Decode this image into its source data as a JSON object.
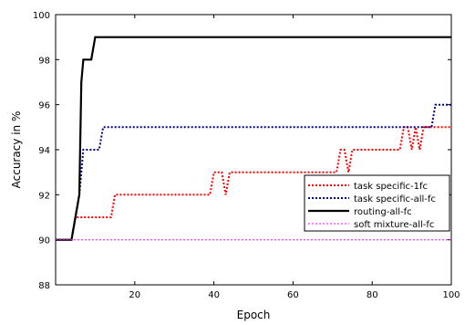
{
  "chart_data": {
    "type": "line",
    "title": "",
    "xlabel": "Epoch",
    "ylabel": "Accuracy in %",
    "xlim": [
      0,
      100
    ],
    "ylim": [
      88,
      100
    ],
    "xticks": [
      20,
      40,
      60,
      80,
      100
    ],
    "yticks": [
      88,
      90,
      92,
      94,
      96,
      98,
      100
    ],
    "grid": false,
    "legend_position": "lower-right",
    "series": [
      {
        "name": "task specific-1fc",
        "color": "#ff0000",
        "style": "dotted",
        "points": [
          [
            0,
            90
          ],
          [
            4,
            90
          ],
          [
            5,
            91
          ],
          [
            13,
            91
          ],
          [
            14,
            91
          ],
          [
            15,
            92
          ],
          [
            39,
            92
          ],
          [
            40,
            93
          ],
          [
            42,
            93
          ],
          [
            43,
            92
          ],
          [
            44,
            93
          ],
          [
            71,
            93
          ],
          [
            72,
            94
          ],
          [
            73,
            94
          ],
          [
            74,
            93
          ],
          [
            75,
            94
          ],
          [
            87,
            94
          ],
          [
            88,
            95
          ],
          [
            89,
            95
          ],
          [
            90,
            94
          ],
          [
            91,
            95
          ],
          [
            92,
            94
          ],
          [
            93,
            95
          ],
          [
            100,
            95
          ]
        ]
      },
      {
        "name": "task specific-all-fc",
        "color": "#000080",
        "style": "dotted",
        "points": [
          [
            0,
            90
          ],
          [
            4,
            90
          ],
          [
            5,
            91
          ],
          [
            6,
            92
          ],
          [
            7,
            94
          ],
          [
            11,
            94
          ],
          [
            12,
            95
          ],
          [
            95,
            95
          ],
          [
            96,
            96
          ],
          [
            100,
            96
          ]
        ]
      },
      {
        "name": "routing-all-fc",
        "color": "#000000",
        "style": "solid",
        "points": [
          [
            0,
            90
          ],
          [
            4,
            90
          ],
          [
            5,
            91
          ],
          [
            6,
            92
          ],
          [
            6.5,
            97
          ],
          [
            7,
            98
          ],
          [
            9,
            98
          ],
          [
            10,
            99
          ],
          [
            100,
            99
          ]
        ]
      },
      {
        "name": "soft mixture-all-fc",
        "color": "#ff00ff",
        "style": "dashed-thin",
        "points": [
          [
            0,
            90
          ],
          [
            100,
            90
          ]
        ]
      }
    ]
  }
}
